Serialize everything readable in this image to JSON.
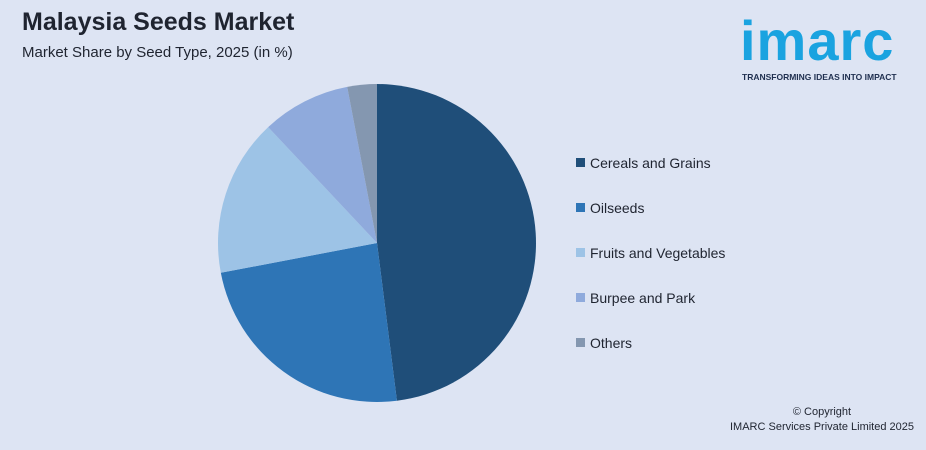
{
  "header": {
    "title": "Malaysia Seeds Market",
    "subtitle": "Market Share by Seed Type, 2025 (in %)"
  },
  "logo": {
    "word": "imarc",
    "tagline": "TRANSFORMING IDEAS INTO IMPACT"
  },
  "footer": {
    "copyright": "© Copyright",
    "company": "IMARC Services Private Limited 2025"
  },
  "chart_data": {
    "type": "pie",
    "title": "Malaysia Seeds Market",
    "subtitle": "Market Share by Seed Type, 2025 (in %)",
    "legend_position": "right",
    "categories": [
      "Cereals and Grains",
      "Oilseeds",
      "Fruits and Vegetables",
      "Burpee and Park",
      "Others"
    ],
    "values": [
      48,
      24,
      16,
      9,
      3
    ],
    "colors": [
      "#1f4e79",
      "#2e75b6",
      "#9dc3e6",
      "#8faadc",
      "#8497b0"
    ]
  }
}
